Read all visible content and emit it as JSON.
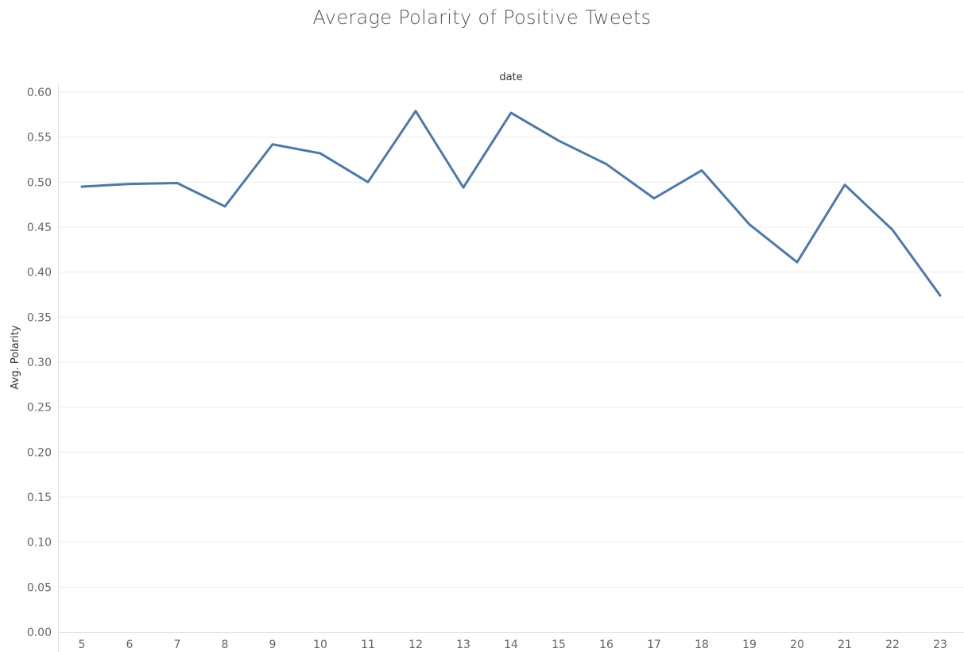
{
  "chart_data": {
    "type": "line",
    "title": "Average Polarity of Positive Tweets",
    "xlabel": "date",
    "ylabel": "Avg. Polarity",
    "x": [
      "5",
      "6",
      "7",
      "8",
      "9",
      "10",
      "11",
      "12",
      "13",
      "14",
      "15",
      "16",
      "17",
      "18",
      "19",
      "20",
      "21",
      "22",
      "23"
    ],
    "series": [
      {
        "values": [
          0.495,
          0.498,
          0.499,
          0.473,
          0.542,
          0.532,
          0.5,
          0.579,
          0.494,
          0.577,
          0.546,
          0.52,
          0.482,
          0.513,
          0.453,
          0.411,
          0.497,
          0.447,
          0.374
        ]
      }
    ],
    "ylim": [
      0,
      0.6
    ],
    "yticks": [
      "0.00",
      "0.05",
      "0.10",
      "0.15",
      "0.20",
      "0.25",
      "0.30",
      "0.35",
      "0.40",
      "0.45",
      "0.50",
      "0.55",
      "0.60"
    ],
    "grid": true,
    "line_color": "#4e79a7"
  }
}
